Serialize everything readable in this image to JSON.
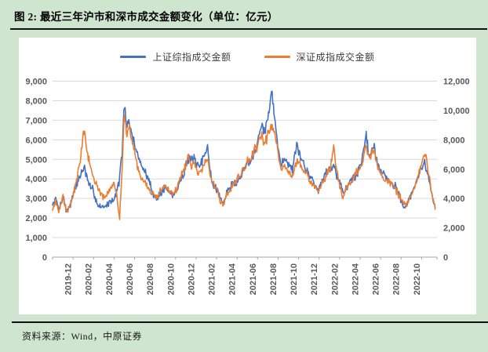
{
  "figure": {
    "title": "图 2:  最近三年沪市和深市成交金额变化（单位：亿元）",
    "source_note": "资料来源：Wind，中原证券"
  },
  "colors": {
    "background": "#cfe5d0",
    "panel": "#ffffff",
    "rule": "#111111",
    "grid": "#d9d9d9",
    "axis": "#a6a6a6",
    "tick_text": "#595959",
    "shanghai_blue": "#4472C4",
    "shenzhen_orange": "#ED7D31"
  },
  "legend": [
    {
      "label": "上证综指成交金额",
      "color": "#4472C4"
    },
    {
      "label": "深证成指成交金额",
      "color": "#ED7D31"
    }
  ],
  "chart_data": {
    "type": "line",
    "title": "最近三年沪市和深市成交金额变化",
    "unit": "亿元",
    "legend_position": "top",
    "grid": "horizontal",
    "x_start": "2019-12",
    "x_months_range": [
      0,
      37.5
    ],
    "x_tick_labels": [
      "2019-12",
      "2020-02",
      "2020-04",
      "2020-06",
      "2020-08",
      "2020-10",
      "2020-12",
      "2021-02",
      "2021-04",
      "2021-06",
      "2021-08",
      "2021-10",
      "2021-12",
      "2022-02",
      "2022-04",
      "2022-06",
      "2022-08",
      "2022-10"
    ],
    "left_axis": {
      "series": "上证综指成交金额",
      "range": [
        0,
        9000
      ],
      "tick_step": 1000,
      "tick_labels": [
        "0",
        "1,000",
        "2,000",
        "3,000",
        "4,000",
        "5,000",
        "6,000",
        "7,000",
        "8,000",
        "9,000"
      ]
    },
    "right_axis": {
      "series": "深证成指成交金额",
      "range": [
        0,
        12000
      ],
      "tick_step": 2000,
      "tick_labels": [
        "0",
        "2,000",
        "4,000",
        "6,000",
        "8,000",
        "10,000",
        "12,000"
      ]
    },
    "series": [
      {
        "name": "上证综指成交金额",
        "axis": "left",
        "color": "#4472C4",
        "anchors_month_value": [
          [
            0,
            2600
          ],
          [
            0.3,
            3100
          ],
          [
            0.6,
            2350
          ],
          [
            1,
            3200
          ],
          [
            1.4,
            2300
          ],
          [
            1.8,
            2900
          ],
          [
            2.2,
            3500
          ],
          [
            2.6,
            4100
          ],
          [
            3.1,
            4600
          ],
          [
            3.4,
            3900
          ],
          [
            3.8,
            3400
          ],
          [
            4.2,
            2950
          ],
          [
            4.6,
            2650
          ],
          [
            5,
            2500
          ],
          [
            5.5,
            2750
          ],
          [
            6,
            3100
          ],
          [
            6.5,
            3900
          ],
          [
            6.8,
            5600
          ],
          [
            7,
            7900
          ],
          [
            7.25,
            6400
          ],
          [
            7.5,
            6700
          ],
          [
            8,
            5700
          ],
          [
            8.3,
            5300
          ],
          [
            8.7,
            4700
          ],
          [
            9.2,
            4100
          ],
          [
            9.6,
            3500
          ],
          [
            10.2,
            3000
          ],
          [
            10.6,
            3400
          ],
          [
            11,
            3600
          ],
          [
            11.4,
            3250
          ],
          [
            11.8,
            3150
          ],
          [
            12.2,
            3500
          ],
          [
            12.7,
            4300
          ],
          [
            13.2,
            5200
          ],
          [
            13.5,
            4800
          ],
          [
            13.8,
            5000
          ],
          [
            14.2,
            4400
          ],
          [
            14.6,
            4700
          ],
          [
            15.1,
            5800
          ],
          [
            15.5,
            3900
          ],
          [
            16,
            3500
          ],
          [
            16.4,
            2950
          ],
          [
            16.7,
            2800
          ],
          [
            17,
            3300
          ],
          [
            17.5,
            3700
          ],
          [
            18,
            3900
          ],
          [
            18.5,
            4300
          ],
          [
            19,
            4800
          ],
          [
            19.5,
            5300
          ],
          [
            20,
            6200
          ],
          [
            20.4,
            6900
          ],
          [
            20.7,
            6400
          ],
          [
            21,
            7000
          ],
          [
            21.4,
            8400
          ],
          [
            21.7,
            7000
          ],
          [
            22,
            5800
          ],
          [
            22.3,
            4600
          ],
          [
            22.7,
            5100
          ],
          [
            23,
            4800
          ],
          [
            23.4,
            4500
          ],
          [
            23.8,
            5400
          ],
          [
            24.2,
            4900
          ],
          [
            24.6,
            4600
          ],
          [
            25,
            4300
          ],
          [
            25.5,
            3800
          ],
          [
            25.9,
            3400
          ],
          [
            26.3,
            4000
          ],
          [
            26.7,
            4400
          ],
          [
            27.1,
            4600
          ],
          [
            27.4,
            5100
          ],
          [
            27.8,
            4300
          ],
          [
            28.3,
            3400
          ],
          [
            28.7,
            3600
          ],
          [
            29.2,
            3900
          ],
          [
            29.7,
            4300
          ],
          [
            30.2,
            5000
          ],
          [
            30.6,
            6200
          ],
          [
            30.9,
            5300
          ],
          [
            31.3,
            5700
          ],
          [
            31.7,
            4900
          ],
          [
            32.1,
            4500
          ],
          [
            32.5,
            4200
          ],
          [
            33,
            3900
          ],
          [
            33.5,
            3500
          ],
          [
            34,
            3000
          ],
          [
            34.5,
            2600
          ],
          [
            35,
            3200
          ],
          [
            35.5,
            3800
          ],
          [
            35.9,
            4300
          ],
          [
            36.3,
            4700
          ],
          [
            36.7,
            4100
          ],
          [
            37,
            3300
          ],
          [
            37.35,
            2550
          ]
        ]
      },
      {
        "name": "深证成指成交金额",
        "axis": "right",
        "color": "#ED7D31",
        "anchors_month_value": [
          [
            0,
            3300
          ],
          [
            0.3,
            3900
          ],
          [
            0.6,
            2900
          ],
          [
            1,
            4100
          ],
          [
            1.4,
            2800
          ],
          [
            1.8,
            3700
          ],
          [
            2.2,
            4700
          ],
          [
            2.6,
            6200
          ],
          [
            3.1,
            8800
          ],
          [
            3.4,
            7000
          ],
          [
            3.8,
            5900
          ],
          [
            4.2,
            5000
          ],
          [
            4.6,
            4400
          ],
          [
            5,
            4100
          ],
          [
            5.5,
            4500
          ],
          [
            6,
            5100
          ],
          [
            6.3,
            4100
          ],
          [
            6.55,
            2700
          ],
          [
            6.8,
            6600
          ],
          [
            7,
            9800
          ],
          [
            7.25,
            8300
          ],
          [
            7.5,
            9100
          ],
          [
            8,
            6900
          ],
          [
            8.3,
            6300
          ],
          [
            8.7,
            5800
          ],
          [
            9.2,
            5100
          ],
          [
            9.6,
            4500
          ],
          [
            10.2,
            4100
          ],
          [
            10.6,
            4600
          ],
          [
            11,
            4900
          ],
          [
            11.4,
            4400
          ],
          [
            11.8,
            4300
          ],
          [
            12.2,
            4800
          ],
          [
            12.7,
            5700
          ],
          [
            13.2,
            6800
          ],
          [
            13.5,
            6200
          ],
          [
            13.8,
            6500
          ],
          [
            14.2,
            5800
          ],
          [
            14.6,
            6100
          ],
          [
            15.1,
            6900
          ],
          [
            15.5,
            5200
          ],
          [
            16,
            4700
          ],
          [
            16.4,
            3900
          ],
          [
            16.7,
            3700
          ],
          [
            17,
            4400
          ],
          [
            17.5,
            4900
          ],
          [
            18,
            5200
          ],
          [
            18.5,
            5700
          ],
          [
            19,
            6300
          ],
          [
            19.5,
            7000
          ],
          [
            20,
            7800
          ],
          [
            20.4,
            8400
          ],
          [
            20.7,
            7800
          ],
          [
            21,
            8300
          ],
          [
            21.4,
            8900
          ],
          [
            21.7,
            8200
          ],
          [
            22,
            7000
          ],
          [
            22.3,
            5800
          ],
          [
            22.7,
            6400
          ],
          [
            23,
            6100
          ],
          [
            23.4,
            5700
          ],
          [
            23.8,
            6600
          ],
          [
            24.2,
            6200
          ],
          [
            24.6,
            5900
          ],
          [
            25,
            5500
          ],
          [
            25.5,
            4900
          ],
          [
            25.9,
            4400
          ],
          [
            26.3,
            5100
          ],
          [
            26.7,
            5600
          ],
          [
            27.1,
            6000
          ],
          [
            27.4,
            7800
          ],
          [
            27.8,
            5600
          ],
          [
            28.3,
            4300
          ],
          [
            28.7,
            4600
          ],
          [
            29.2,
            5000
          ],
          [
            29.7,
            5600
          ],
          [
            30.2,
            6400
          ],
          [
            30.6,
            7400
          ],
          [
            30.9,
            6600
          ],
          [
            31.3,
            7000
          ],
          [
            31.7,
            6200
          ],
          [
            32.1,
            5800
          ],
          [
            32.5,
            5400
          ],
          [
            33,
            5000
          ],
          [
            33.5,
            4500
          ],
          [
            34,
            3900
          ],
          [
            34.5,
            3400
          ],
          [
            35,
            4200
          ],
          [
            35.5,
            5200
          ],
          [
            35.9,
            6300
          ],
          [
            36.3,
            7000
          ],
          [
            36.7,
            5600
          ],
          [
            37,
            4400
          ],
          [
            37.35,
            3500
          ]
        ]
      }
    ]
  }
}
